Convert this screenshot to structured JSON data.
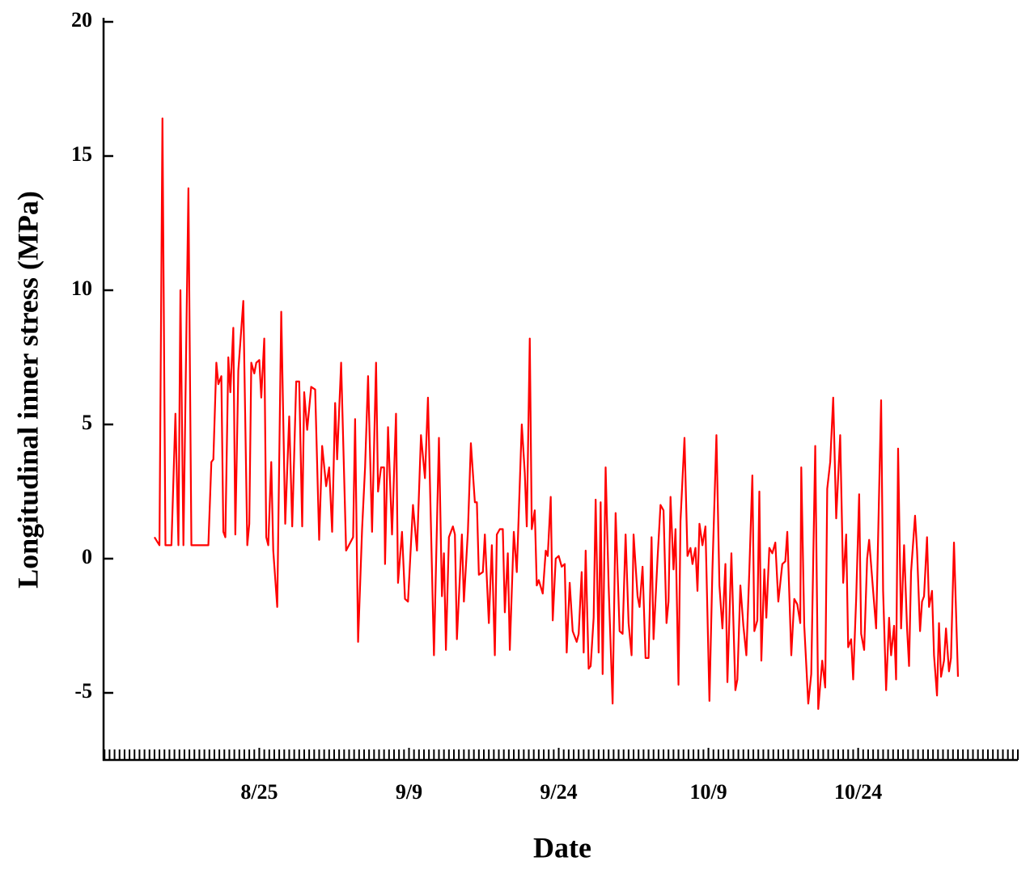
{
  "chart_data": {
    "type": "line",
    "xlabel": "Date",
    "ylabel": "Longitudinal inner stress (MPa)",
    "xlim": [
      221.4,
      313.0
    ],
    "xticks": [
      {
        "value": 237,
        "label": "8/25"
      },
      {
        "value": 252,
        "label": "9/9"
      },
      {
        "value": 267,
        "label": "9/24"
      },
      {
        "value": 282,
        "label": "10/9"
      },
      {
        "value": 297,
        "label": "10/24"
      }
    ],
    "x_minor_tick_step": 0.5,
    "ylim": [
      -7.5,
      20
    ],
    "yticks": [
      20,
      15,
      10,
      5,
      0,
      -5
    ],
    "grid": false,
    "series": [
      {
        "name": "Longitudinal inner stress",
        "color": "#ff0000",
        "x": [
          226.5,
          227.0,
          227.3,
          227.6,
          228.2,
          228.6,
          228.9,
          229.1,
          229.4,
          229.9,
          230.2,
          231.9,
          232.2,
          232.4,
          232.7,
          232.9,
          233.2,
          233.4,
          233.6,
          233.9,
          234.1,
          234.4,
          234.6,
          234.9,
          235.4,
          235.8,
          236.0,
          236.2,
          236.5,
          236.7,
          237.0,
          237.2,
          237.5,
          237.7,
          237.9,
          238.2,
          238.4,
          238.8,
          239.2,
          239.6,
          240.0,
          240.3,
          240.7,
          241.0,
          241.3,
          241.5,
          241.8,
          242.2,
          242.6,
          243.0,
          243.3,
          243.7,
          244.0,
          244.3,
          244.6,
          244.8,
          245.2,
          245.7,
          246.4,
          246.6,
          246.9,
          247.3,
          247.6,
          247.9,
          248.3,
          248.7,
          248.9,
          249.2,
          249.5,
          249.6,
          249.9,
          250.3,
          250.7,
          250.9,
          251.3,
          251.6,
          251.9,
          252.4,
          252.8,
          253.2,
          253.6,
          253.9,
          254.5,
          255.0,
          255.3,
          255.5,
          255.7,
          256.0,
          256.4,
          256.6,
          256.8,
          257.3,
          257.5,
          257.9,
          258.2,
          258.6,
          258.8,
          259.0,
          259.4,
          259.6,
          260.0,
          260.3,
          260.6,
          260.8,
          261.1,
          261.4,
          261.6,
          261.9,
          262.1,
          262.5,
          262.8,
          263.3,
          263.6,
          263.8,
          264.1,
          264.3,
          264.6,
          264.8,
          265.0,
          265.4,
          265.7,
          265.9,
          266.2,
          266.4,
          266.7,
          267.0,
          267.3,
          267.6,
          267.8,
          268.1,
          268.4,
          268.8,
          269.0,
          269.3,
          269.5,
          269.7,
          270.0,
          270.2,
          270.5,
          270.7,
          271.0,
          271.2,
          271.4,
          271.7,
          272.0,
          272.4,
          272.7,
          273.1,
          273.4,
          273.7,
          274.0,
          274.3,
          274.5,
          274.9,
          275.1,
          275.4,
          275.7,
          276.0,
          276.3,
          276.5,
          276.9,
          277.2,
          277.5,
          277.8,
          278.0,
          278.2,
          278.5,
          278.7,
          279.0,
          279.2,
          279.6,
          279.9,
          280.2,
          280.4,
          280.7,
          280.9,
          281.1,
          281.4,
          281.7,
          282.1,
          282.4,
          282.8,
          283.1,
          283.4,
          283.7,
          283.9,
          284.3,
          284.7,
          284.9,
          285.2,
          285.5,
          285.8,
          286.1,
          286.4,
          286.6,
          286.9,
          287.1,
          287.3,
          287.6,
          287.8,
          288.1,
          288.4,
          288.7,
          289.0,
          289.4,
          289.7,
          289.9,
          290.3,
          290.6,
          290.9,
          291.2,
          291.3,
          291.6,
          292.0,
          292.3,
          292.7,
          293.0,
          293.4,
          293.7,
          293.9,
          294.2,
          294.5,
          294.8,
          295.2,
          295.5,
          295.8,
          296.0,
          296.3,
          296.5,
          296.8,
          297.1,
          297.3,
          297.6,
          297.9,
          298.1,
          298.5,
          298.8,
          299.3,
          299.5,
          299.8,
          300.1,
          300.3,
          300.6,
          300.8,
          301.0,
          301.3,
          301.6,
          301.9,
          302.1,
          302.3,
          302.7,
          302.9,
          303.2,
          303.4,
          303.6,
          303.9,
          304.1,
          304.4,
          304.6,
          304.9,
          305.1,
          305.3,
          305.6,
          305.8,
          306.1,
          306.3,
          306.6,
          307.0
        ],
        "values": [
          0.8,
          0.5,
          16.4,
          0.5,
          0.5,
          5.4,
          0.5,
          10,
          0.5,
          13.8,
          0.5,
          0.5,
          3.6,
          3.7,
          7.3,
          6.5,
          6.8,
          1.0,
          0.8,
          7.5,
          6.2,
          8.6,
          0.9,
          7.0,
          9.6,
          0.5,
          1.3,
          7.3,
          6.9,
          7.3,
          7.4,
          6.0,
          8.2,
          0.8,
          0.5,
          3.6,
          0.3,
          -1.8,
          9.2,
          1.3,
          5.3,
          1.2,
          6.6,
          6.6,
          1.2,
          6.2,
          4.8,
          6.4,
          6.3,
          0.7,
          4.2,
          2.7,
          3.4,
          1.0,
          5.8,
          3.7,
          7.3,
          0.3,
          0.8,
          5.2,
          -3.1,
          1.1,
          3.4,
          6.8,
          1.0,
          7.3,
          2.5,
          3.4,
          3.4,
          -0.2,
          4.9,
          0.9,
          5.4,
          -0.9,
          1.0,
          -1.5,
          -1.6,
          2.0,
          0.3,
          4.6,
          3.0,
          6.0,
          -3.6,
          4.5,
          -1.4,
          0.2,
          -3.4,
          0.8,
          1.2,
          0.9,
          -3.0,
          0.9,
          -1.6,
          1.0,
          4.3,
          2.1,
          2.1,
          -0.6,
          -0.5,
          0.9,
          -2.4,
          0.5,
          -3.6,
          0.9,
          1.1,
          1.1,
          -2.0,
          0.2,
          -3.4,
          1.0,
          -0.5,
          5.0,
          3.2,
          1.2,
          8.2,
          1.1,
          1.8,
          -1.0,
          -0.8,
          -1.3,
          0.3,
          0.1,
          2.3,
          -2.3,
          0.0,
          0.1,
          -0.3,
          -0.2,
          -3.5,
          -0.9,
          -2.7,
          -3.1,
          -2.8,
          -0.5,
          -3.5,
          0.3,
          -4.1,
          -4.0,
          -2.2,
          2.2,
          -3.5,
          2.1,
          -4.3,
          3.4,
          -1.0,
          -5.4,
          1.7,
          -2.7,
          -2.8,
          0.9,
          -2.4,
          -3.6,
          0.9,
          -1.4,
          -1.8,
          -0.3,
          -3.7,
          -3.7,
          0.8,
          -3.0,
          0.0,
          2.0,
          1.8,
          -2.4,
          -1.6,
          2.3,
          -0.4,
          1.1,
          -4.7,
          1.4,
          4.5,
          0.1,
          0.4,
          -0.2,
          0.4,
          -1.2,
          1.3,
          0.5,
          1.2,
          -5.3,
          -0.4,
          4.6,
          -1.0,
          -2.6,
          -0.2,
          -4.6,
          0.2,
          -4.9,
          -4.5,
          -1.0,
          -2.5,
          -3.6,
          -0.4,
          3.1,
          -2.7,
          -2.3,
          2.5,
          -3.8,
          -0.4,
          -2.2,
          0.4,
          0.2,
          0.6,
          -1.6,
          -0.2,
          -0.1,
          1.0,
          -3.6,
          -1.5,
          -1.7,
          -2.4,
          3.4,
          -2.5,
          -5.4,
          -4.3,
          4.2,
          -5.6,
          -3.8,
          -4.8,
          2.6,
          3.6,
          6.0,
          1.5,
          4.6,
          -0.9,
          0.9,
          -3.3,
          -3.0,
          -4.5,
          -1.5,
          2.4,
          -2.8,
          -3.4,
          0.0,
          0.7,
          -1.2,
          -2.6,
          5.9,
          -1.2,
          -4.9,
          -2.2,
          -3.6,
          -2.5,
          -4.5,
          4.1,
          -2.6,
          0.5,
          -2.6,
          -4.0,
          -0.5,
          1.6,
          0.3,
          -2.7,
          -1.6,
          -1.4,
          0.8,
          -1.8,
          -1.2,
          -3.6,
          -5.1,
          -2.4,
          -4.4,
          -3.8,
          -2.6,
          -4.2,
          -3.7,
          0.6,
          -4.4
        ]
      }
    ]
  }
}
